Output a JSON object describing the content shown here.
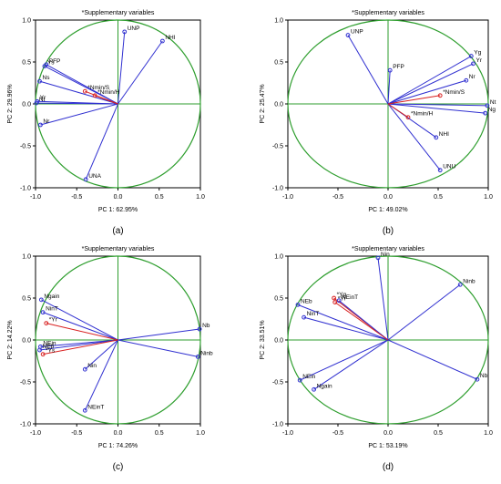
{
  "chart_data": [
    {
      "type": "scatter",
      "panel_label": "(a)",
      "title": "*Supplementary variables",
      "xlabel": "PC 1: 62.95%",
      "ylabel": "PC 2: 29.96%",
      "xlim": [
        -1.0,
        1.0
      ],
      "ylim": [
        -1.0,
        1.0
      ],
      "xticks": [
        "-1.0",
        "-0.5",
        "0.0",
        "0.5",
        "1.0"
      ],
      "yticks": [
        "-1.0",
        "-0.5",
        "0.0",
        "0.5",
        "1.0"
      ],
      "grid": false,
      "points": [
        {
          "label": "UNP",
          "x": 0.08,
          "y": 0.86,
          "supp": false
        },
        {
          "label": "NHI",
          "x": 0.54,
          "y": 0.75,
          "supp": false
        },
        {
          "label": "PFP",
          "x": -0.87,
          "y": 0.47,
          "supp": false
        },
        {
          "label": "Ys",
          "x": -0.89,
          "y": 0.45,
          "supp": false
        },
        {
          "label": "Ns",
          "x": -0.95,
          "y": 0.27,
          "supp": false
        },
        {
          "label": "Yr",
          "x": -0.98,
          "y": 0.03,
          "supp": false
        },
        {
          "label": "Nt",
          "x": -0.99,
          "y": 0.01,
          "supp": false
        },
        {
          "label": "Nr",
          "x": -0.94,
          "y": -0.25,
          "supp": false
        },
        {
          "label": "UNA",
          "x": -0.39,
          "y": -0.9,
          "supp": false
        },
        {
          "label": "*Nmin/S",
          "x": -0.4,
          "y": 0.15,
          "supp": true
        },
        {
          "label": "*Nmin/H",
          "x": -0.28,
          "y": 0.1,
          "supp": true
        }
      ]
    },
    {
      "type": "scatter",
      "panel_label": "(b)",
      "title": "*Supplementary variables",
      "xlabel": "PC 1: 49.02%",
      "ylabel": "PC 2: 25.47%",
      "xlim": [
        -1.0,
        1.0
      ],
      "ylim": [
        -1.0,
        1.0
      ],
      "xticks": [
        "-1.0",
        "-0.5",
        "0.0",
        "0.5",
        "1.0"
      ],
      "yticks": [
        "-1.0",
        "-0.5",
        "0.0",
        "0.5",
        "1.0"
      ],
      "grid": false,
      "points": [
        {
          "label": "UNP",
          "x": -0.4,
          "y": 0.82,
          "supp": false
        },
        {
          "label": "PFP",
          "x": 0.02,
          "y": 0.4,
          "supp": false
        },
        {
          "label": "Yg",
          "x": 0.83,
          "y": 0.57,
          "supp": false
        },
        {
          "label": "Yr",
          "x": 0.85,
          "y": 0.48,
          "supp": false
        },
        {
          "label": "Nr",
          "x": 0.78,
          "y": 0.28,
          "supp": false
        },
        {
          "label": "Nt",
          "x": 0.99,
          "y": -0.02,
          "supp": false
        },
        {
          "label": "Ng",
          "x": 0.97,
          "y": -0.11,
          "supp": false
        },
        {
          "label": "NHI",
          "x": 0.48,
          "y": -0.4,
          "supp": false
        },
        {
          "label": "UNU",
          "x": 0.52,
          "y": -0.79,
          "supp": false
        },
        {
          "label": "*Nmin/S",
          "x": 0.52,
          "y": 0.1,
          "supp": true
        },
        {
          "label": "*Nmin/H",
          "x": 0.2,
          "y": -0.16,
          "supp": true
        }
      ]
    },
    {
      "type": "scatter",
      "panel_label": "(c)",
      "title": "*Supplementary variables",
      "xlabel": "PC 1: 74.26%",
      "ylabel": "PC 2: 14.22%",
      "xlim": [
        -1.0,
        1.0
      ],
      "ylim": [
        -1.0,
        1.0
      ],
      "xticks": [
        "-1.0",
        "-0.5",
        "0.0",
        "0.5",
        "1.0"
      ],
      "yticks": [
        "-1.0",
        "-0.5",
        "0.0",
        "0.5",
        "1.0"
      ],
      "grid": false,
      "points": [
        {
          "label": "Ngain",
          "x": -0.93,
          "y": 0.48,
          "supp": false
        },
        {
          "label": "NinT",
          "x": -0.91,
          "y": 0.33,
          "supp": false
        },
        {
          "label": "NEin",
          "x": -0.94,
          "y": -0.08,
          "supp": false
        },
        {
          "label": "NEb",
          "x": -0.95,
          "y": -0.12,
          "supp": false
        },
        {
          "label": "Nin",
          "x": -0.4,
          "y": -0.35,
          "supp": false
        },
        {
          "label": "NEinT",
          "x": -0.4,
          "y": -0.84,
          "supp": false
        },
        {
          "label": "Nb",
          "x": 0.99,
          "y": 0.13,
          "supp": false
        },
        {
          "label": "Ninb",
          "x": 0.97,
          "y": -0.2,
          "supp": false
        },
        {
          "label": "*Yr",
          "x": -0.87,
          "y": 0.2,
          "supp": true
        },
        {
          "label": "*Ys",
          "x": -0.91,
          "y": -0.17,
          "supp": true
        }
      ]
    },
    {
      "type": "scatter",
      "panel_label": "(d)",
      "title": "*Supplementary variables",
      "xlabel": "PC 1: 53.19%",
      "ylabel": "PC 2: 33.51%",
      "xlim": [
        -1.0,
        1.0
      ],
      "ylim": [
        -1.0,
        1.0
      ],
      "xticks": [
        "-1.0",
        "-0.5",
        "0.0",
        "0.5",
        "1.0"
      ],
      "yticks": [
        "-1.0",
        "-0.5",
        "0.0",
        "0.5",
        "1.0"
      ],
      "grid": false,
      "points": [
        {
          "label": "Nin",
          "x": -0.1,
          "y": 0.98,
          "supp": false
        },
        {
          "label": "Ninb",
          "x": 0.72,
          "y": 0.66,
          "supp": false
        },
        {
          "label": "NEb",
          "x": -0.9,
          "y": 0.42,
          "supp": false
        },
        {
          "label": "NinT",
          "x": -0.84,
          "y": 0.27,
          "supp": false
        },
        {
          "label": "NEin",
          "x": -0.88,
          "y": -0.48,
          "supp": false
        },
        {
          "label": "Ngain",
          "x": -0.74,
          "y": -0.59,
          "supp": false
        },
        {
          "label": "Nb",
          "x": 0.89,
          "y": -0.47,
          "supp": false
        },
        {
          "label": "*Yg",
          "x": -0.54,
          "y": 0.5,
          "supp": true
        },
        {
          "label": "NEinT",
          "x": -0.49,
          "y": 0.47,
          "supp": false
        },
        {
          "label": "*Yr",
          "x": -0.53,
          "y": 0.45,
          "supp": true
        }
      ]
    }
  ],
  "colors": {
    "circle": "#2e9e2e",
    "axis_cross": "#2e9e2e",
    "active_vector": "#2f2fd0",
    "supplementary_vector": "#d82020",
    "frame": "#000000",
    "text": "#000000"
  }
}
